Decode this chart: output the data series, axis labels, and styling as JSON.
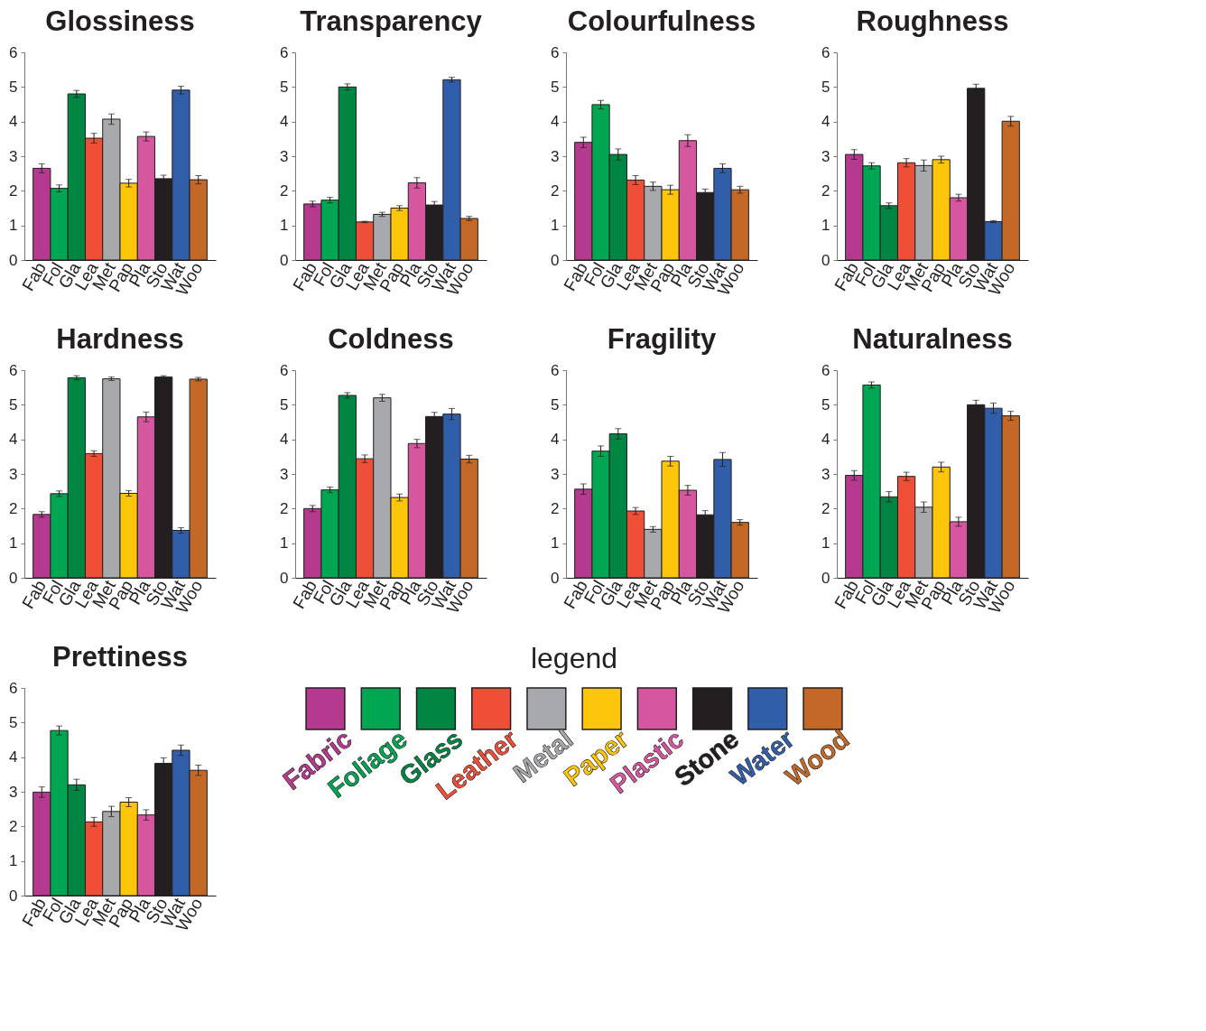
{
  "chart_data": [
    {
      "type": "bar",
      "title": "Glossiness",
      "categories": [
        "Fab",
        "Fol",
        "Gla",
        "Lea",
        "Met",
        "Pap",
        "Pla",
        "Sto",
        "Wat",
        "Woo"
      ],
      "values": [
        2.65,
        2.07,
        4.8,
        3.52,
        4.07,
        2.22,
        3.57,
        2.35,
        4.91,
        2.32
      ],
      "errors": [
        0.13,
        0.1,
        0.1,
        0.14,
        0.15,
        0.11,
        0.13,
        0.1,
        0.11,
        0.12
      ],
      "colors": [
        "#b5398f",
        "#00a651",
        "#008642",
        "#ef4e37",
        "#a7a9ac",
        "#fdc60b",
        "#d6579f",
        "#231f20",
        "#315ea9",
        "#c46827"
      ],
      "ylim": [
        0,
        6
      ],
      "yticks": [
        0,
        1,
        2,
        3,
        4,
        5,
        6
      ]
    },
    {
      "type": "bar",
      "title": "Transparency",
      "categories": [
        "Fab",
        "Fol",
        "Gla",
        "Lea",
        "Met",
        "Pap",
        "Pla",
        "Sto",
        "Wat",
        "Woo"
      ],
      "values": [
        1.62,
        1.73,
        5.0,
        1.1,
        1.32,
        1.5,
        2.23,
        1.59,
        5.21,
        1.2
      ],
      "errors": [
        0.08,
        0.08,
        0.09,
        0.02,
        0.06,
        0.07,
        0.15,
        0.1,
        0.07,
        0.06
      ],
      "colors": [
        "#b5398f",
        "#00a651",
        "#008642",
        "#ef4e37",
        "#a7a9ac",
        "#fdc60b",
        "#d6579f",
        "#231f20",
        "#315ea9",
        "#c46827"
      ],
      "ylim": [
        0,
        6
      ],
      "yticks": [
        0,
        1,
        2,
        3,
        4,
        5,
        6
      ]
    },
    {
      "type": "bar",
      "title": "Colourfulness",
      "categories": [
        "Fab",
        "Fol",
        "Gla",
        "Lea",
        "Met",
        "Pap",
        "Pla",
        "Sto",
        "Wat",
        "Woo"
      ],
      "values": [
        3.4,
        4.49,
        3.05,
        2.31,
        2.13,
        2.03,
        3.45,
        1.95,
        2.65,
        2.03
      ],
      "errors": [
        0.15,
        0.12,
        0.16,
        0.13,
        0.12,
        0.13,
        0.17,
        0.1,
        0.13,
        0.1
      ],
      "colors": [
        "#b5398f",
        "#00a651",
        "#008642",
        "#ef4e37",
        "#a7a9ac",
        "#fdc60b",
        "#d6579f",
        "#231f20",
        "#315ea9",
        "#c46827"
      ],
      "ylim": [
        0,
        6
      ],
      "yticks": [
        0,
        1,
        2,
        3,
        4,
        5,
        6
      ]
    },
    {
      "type": "bar",
      "title": "Roughness",
      "categories": [
        "Fab",
        "Fol",
        "Gla",
        "Lea",
        "Met",
        "Pap",
        "Pla",
        "Sto",
        "Wat",
        "Woo"
      ],
      "values": [
        3.05,
        2.72,
        1.57,
        2.81,
        2.73,
        2.9,
        1.8,
        4.96,
        1.11,
        4.01
      ],
      "errors": [
        0.14,
        0.09,
        0.08,
        0.12,
        0.16,
        0.1,
        0.1,
        0.12,
        0.03,
        0.14
      ],
      "colors": [
        "#b5398f",
        "#00a651",
        "#008642",
        "#ef4e37",
        "#a7a9ac",
        "#fdc60b",
        "#d6579f",
        "#231f20",
        "#315ea9",
        "#c46827"
      ],
      "ylim": [
        0,
        6
      ],
      "yticks": [
        0,
        1,
        2,
        3,
        4,
        5,
        6
      ]
    },
    {
      "type": "bar",
      "title": "Hardness",
      "categories": [
        "Fab",
        "Fol",
        "Gla",
        "Lea",
        "Met",
        "Pap",
        "Pla",
        "Sto",
        "Wat",
        "Woo"
      ],
      "values": [
        1.83,
        2.43,
        5.78,
        3.59,
        5.75,
        2.44,
        4.65,
        5.8,
        1.37,
        5.74
      ],
      "errors": [
        0.08,
        0.08,
        0.06,
        0.08,
        0.05,
        0.08,
        0.14,
        0.04,
        0.08,
        0.05
      ],
      "colors": [
        "#b5398f",
        "#00a651",
        "#008642",
        "#ef4e37",
        "#a7a9ac",
        "#fdc60b",
        "#d6579f",
        "#231f20",
        "#315ea9",
        "#c46827"
      ],
      "ylim": [
        0,
        6
      ],
      "yticks": [
        0,
        1,
        2,
        3,
        4,
        5,
        6
      ]
    },
    {
      "type": "bar",
      "title": "Coldness",
      "categories": [
        "Fab",
        "Fol",
        "Gla",
        "Lea",
        "Met",
        "Pap",
        "Pla",
        "Sto",
        "Wat",
        "Woo"
      ],
      "values": [
        2.0,
        2.54,
        5.27,
        3.44,
        5.2,
        2.32,
        3.88,
        4.66,
        4.73,
        3.43
      ],
      "errors": [
        0.09,
        0.08,
        0.08,
        0.11,
        0.1,
        0.1,
        0.12,
        0.12,
        0.16,
        0.11
      ],
      "colors": [
        "#b5398f",
        "#00a651",
        "#008642",
        "#ef4e37",
        "#a7a9ac",
        "#fdc60b",
        "#d6579f",
        "#231f20",
        "#315ea9",
        "#c46827"
      ],
      "ylim": [
        0,
        6
      ],
      "yticks": [
        0,
        1,
        2,
        3,
        4,
        5,
        6
      ]
    },
    {
      "type": "bar",
      "title": "Fragility",
      "categories": [
        "Fab",
        "Fol",
        "Gla",
        "Lea",
        "Met",
        "Pap",
        "Pla",
        "Sto",
        "Wat",
        "Woo"
      ],
      "values": [
        2.56,
        3.66,
        4.16,
        1.93,
        1.4,
        3.37,
        2.53,
        1.82,
        3.42,
        1.6
      ],
      "errors": [
        0.15,
        0.15,
        0.15,
        0.1,
        0.08,
        0.14,
        0.14,
        0.12,
        0.2,
        0.08
      ],
      "colors": [
        "#b5398f",
        "#00a651",
        "#008642",
        "#ef4e37",
        "#a7a9ac",
        "#fdc60b",
        "#d6579f",
        "#231f20",
        "#315ea9",
        "#c46827"
      ],
      "ylim": [
        0,
        6
      ],
      "yticks": [
        0,
        1,
        2,
        3,
        4,
        5,
        6
      ]
    },
    {
      "type": "bar",
      "title": "Naturalness",
      "categories": [
        "Fab",
        "Fol",
        "Gla",
        "Lea",
        "Met",
        "Pap",
        "Pla",
        "Sto",
        "Wat",
        "Woo"
      ],
      "values": [
        2.96,
        5.57,
        2.34,
        2.93,
        2.04,
        3.2,
        1.62,
        5.0,
        4.9,
        4.68
      ],
      "errors": [
        0.14,
        0.09,
        0.15,
        0.12,
        0.15,
        0.14,
        0.13,
        0.13,
        0.15,
        0.13
      ],
      "colors": [
        "#b5398f",
        "#00a651",
        "#008642",
        "#ef4e37",
        "#a7a9ac",
        "#fdc60b",
        "#d6579f",
        "#231f20",
        "#315ea9",
        "#c46827"
      ],
      "ylim": [
        0,
        6
      ],
      "yticks": [
        0,
        1,
        2,
        3,
        4,
        5,
        6
      ]
    },
    {
      "type": "bar",
      "title": "Prettiness",
      "categories": [
        "Fab",
        "Fol",
        "Gla",
        "Lea",
        "Met",
        "Pap",
        "Pla",
        "Sto",
        "Wat",
        "Woo"
      ],
      "values": [
        2.99,
        4.77,
        3.2,
        2.13,
        2.43,
        2.7,
        2.33,
        3.82,
        4.2,
        3.62
      ],
      "errors": [
        0.15,
        0.13,
        0.16,
        0.13,
        0.15,
        0.13,
        0.15,
        0.16,
        0.15,
        0.15
      ],
      "colors": [
        "#b5398f",
        "#00a651",
        "#008642",
        "#ef4e37",
        "#a7a9ac",
        "#fdc60b",
        "#d6579f",
        "#231f20",
        "#315ea9",
        "#c46827"
      ],
      "ylim": [
        0,
        6
      ],
      "yticks": [
        0,
        1,
        2,
        3,
        4,
        5,
        6
      ]
    },
    {
      "type": "other",
      "legend_title": "legend",
      "categories": [
        "Fabric",
        "Foliage",
        "Glass",
        "Leather",
        "Metal",
        "Paper",
        "Plastic",
        "Stone",
        "Water",
        "Wood"
      ],
      "colors": [
        "#b5398f",
        "#00a651",
        "#008642",
        "#ef4e37",
        "#a7a9ac",
        "#fdc60b",
        "#d6579f",
        "#231f20",
        "#315ea9",
        "#c46827"
      ]
    }
  ]
}
